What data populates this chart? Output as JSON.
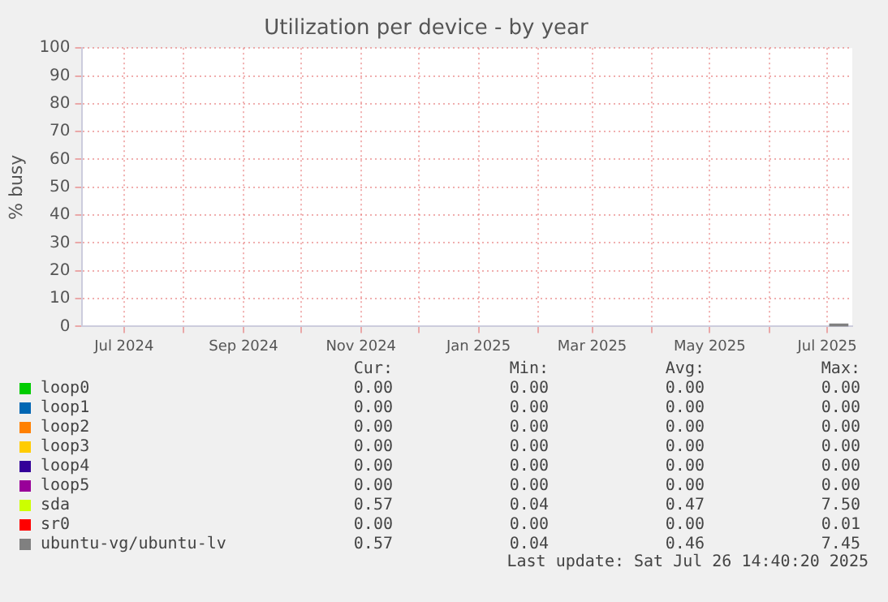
{
  "chart_data": {
    "type": "line",
    "title": "Utilization per device - by year",
    "ylabel": "% busy",
    "xlim": [
      "2024-06-09",
      "2025-07-14"
    ],
    "xticks": [
      {
        "value": "2024-07-01",
        "label": "Jul 2024"
      },
      {
        "value": "2024-08-01",
        "label": null
      },
      {
        "value": "2024-09-01",
        "label": "Sep 2024"
      },
      {
        "value": "2024-10-01",
        "label": null
      },
      {
        "value": "2024-11-01",
        "label": "Nov 2024"
      },
      {
        "value": "2024-12-01",
        "label": null
      },
      {
        "value": "2025-01-01",
        "label": "Jan 2025"
      },
      {
        "value": "2025-02-01",
        "label": null
      },
      {
        "value": "2025-03-01",
        "label": "Mar 2025"
      },
      {
        "value": "2025-04-01",
        "label": null
      },
      {
        "value": "2025-05-01",
        "label": "May 2025"
      },
      {
        "value": "2025-06-01",
        "label": null
      },
      {
        "value": "2025-07-01",
        "label": "Jul 2025"
      }
    ],
    "ylim": [
      0,
      100
    ],
    "yticks": [
      0,
      10,
      20,
      30,
      40,
      50,
      60,
      70,
      80,
      90,
      100
    ],
    "grid": true,
    "legend": "bottom",
    "marker": "none",
    "x": [
      "2025-07-02",
      "2025-07-12"
    ],
    "series": [
      {
        "name": "loop0",
        "color": "#00cc00",
        "values": [
          null,
          null
        ]
      },
      {
        "name": "loop1",
        "color": "#0066b3",
        "values": [
          null,
          null
        ]
      },
      {
        "name": "loop2",
        "color": "#ff8000",
        "values": [
          null,
          null
        ]
      },
      {
        "name": "loop3",
        "color": "#ffcc00",
        "values": [
          null,
          null
        ]
      },
      {
        "name": "loop4",
        "color": "#330099",
        "values": [
          null,
          null
        ]
      },
      {
        "name": "loop5",
        "color": "#990099",
        "values": [
          null,
          null
        ]
      },
      {
        "name": "sda",
        "color": "#ccff00",
        "values": [
          null,
          null
        ]
      },
      {
        "name": "sr0",
        "color": "#ff0000",
        "values": [
          null,
          null
        ]
      },
      {
        "name": "ubuntu-vg/ubuntu-lv",
        "color": "#808080",
        "values": [
          0.5,
          0.5
        ]
      }
    ],
    "annotations": [
      "Cur:",
      "Min:",
      "Avg:",
      "Max:",
      "0.00",
      "0.00",
      "0.00",
      "0.00",
      "0.00",
      "0.00",
      "0.00",
      "0.00",
      "0.00",
      "0.00",
      "0.00",
      "0.00",
      "0.00",
      "0.00",
      "0.00",
      "0.00",
      "0.00",
      "0.00",
      "0.00",
      "0.00",
      "0.00",
      "0.00",
      "0.00",
      "0.00",
      "0.57",
      "0.04",
      "0.47",
      "7.50",
      "0.00",
      "0.00",
      "0.00",
      "0.01",
      "0.57",
      "0.04",
      "0.46",
      "7.45",
      "Last update: Sat Jul 26 14:40:20 2025"
    ]
  }
}
